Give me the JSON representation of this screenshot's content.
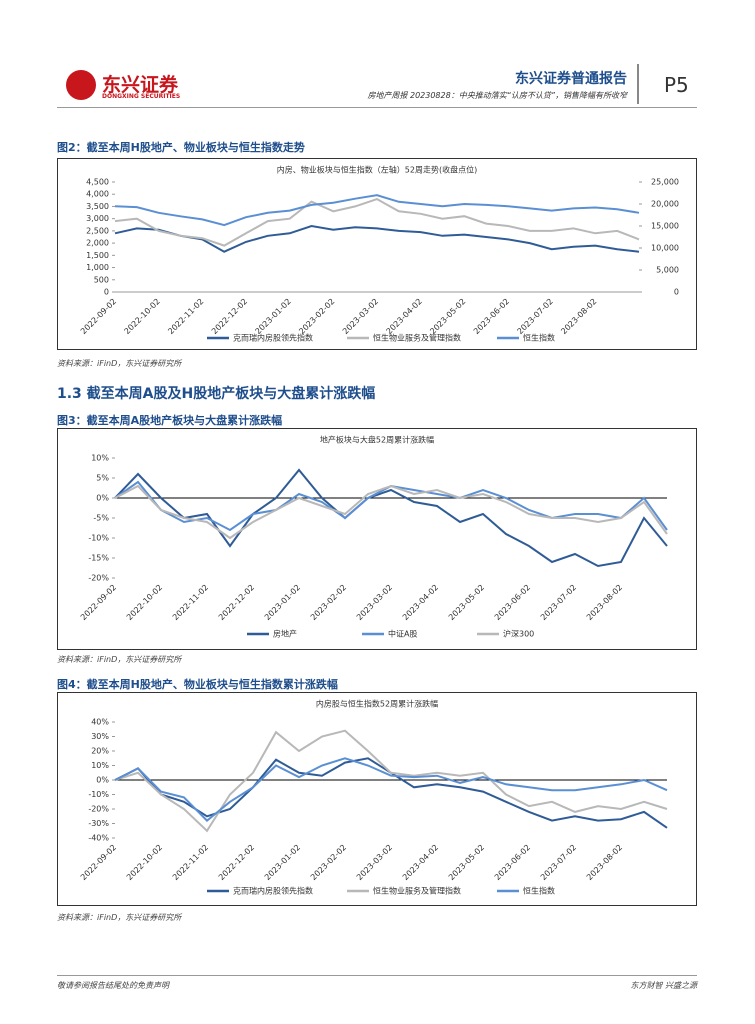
{
  "header": {
    "logo": "东兴证券",
    "logo_en": "DONGXING SECURITIES",
    "report_type": "东兴证券普通报告",
    "report_title": "房地产周报 20230828：中央推动落实“认房不认贷”，销售降幅有所收窄",
    "page": "P5"
  },
  "figures": [
    {
      "caption": "图2：截至本周H股地产、物业板块与恒生指数走势",
      "source": "资料来源：iFinD，东兴证券研究所"
    },
    {
      "caption": "图3：截至本周A股地产板块与大盘累计涨跌幅",
      "source": "资料来源：iFinD，东兴证券研究所"
    },
    {
      "caption": "图4：截至本周H股地产、物业板块与恒生指数累计涨跌幅",
      "source": "资料来源：iFinD，东兴证券研究所"
    }
  ],
  "section_heading": "1.3 截至本周A股及H股地产板块与大盘累计涨跌幅",
  "footer": {
    "left": "敬请参阅报告结尾处的免责声明",
    "right": "东方财智 兴盛之源"
  },
  "chart_data": [
    {
      "type": "line",
      "title": "内房、物业板块与恒生指数（左轴）52周走势(收盘点位)",
      "categories": [
        "2022-09-02",
        null,
        "2022-10-02",
        null,
        "2022-11-02",
        null,
        "2022-12-02",
        null,
        "2023-01-02",
        null,
        "2023-02-02",
        null,
        "2023-03-02",
        null,
        "2023-04-02",
        null,
        "2023-05-02",
        null,
        "2023-06-02",
        null,
        "2023-07-02",
        null,
        "2023-08-02",
        null,
        null
      ],
      "ylim": [
        0,
        4500
      ],
      "yticks": [
        0,
        500,
        {
          "value": 1000,
          "label": "1,000"
        },
        {
          "value": 1500,
          "label": "1,500"
        },
        {
          "value": 2000,
          "label": "2,000"
        },
        {
          "value": 2500,
          "label": "2,500"
        },
        {
          "value": 3000,
          "label": "3,000"
        },
        {
          "value": 3500,
          "label": "3,500"
        },
        {
          "value": 4000,
          "label": "4,000"
        },
        {
          "value": 4500,
          "label": "4,500"
        }
      ],
      "y2lim": [
        0,
        25000
      ],
      "y2ticks": [
        0,
        {
          "value": 5000,
          "label": "5,000"
        },
        {
          "value": 10000,
          "label": "10,000"
        },
        {
          "value": 15000,
          "label": "15,000"
        },
        {
          "value": 20000,
          "label": "20,000"
        },
        {
          "value": 25000,
          "label": "25,000"
        }
      ],
      "series": [
        {
          "name": "克而瑞内房股领先指数",
          "color": "#2f5c97",
          "values": [
            2400,
            2600,
            2550,
            2300,
            2150,
            1650,
            2050,
            2300,
            2400,
            2700,
            2550,
            2650,
            2600,
            2500,
            2450,
            2300,
            2350,
            2250,
            2150,
            2000,
            1750,
            1850,
            1900,
            1750,
            1650
          ]
        },
        {
          "name": "恒生物业服务及管理指数",
          "color": "#b8b8b8",
          "values": [
            2900,
            3000,
            2500,
            2300,
            2200,
            1900,
            2400,
            2900,
            3000,
            3700,
            3300,
            3500,
            3800,
            3300,
            3200,
            3000,
            3100,
            2800,
            2700,
            2500,
            2500,
            2600,
            2400,
            2500,
            2150
          ]
        },
        {
          "name": "恒生指数",
          "color": "#5b8fd3",
          "axis": "y2",
          "values": [
            19500,
            19300,
            18000,
            17200,
            16500,
            15200,
            17000,
            18000,
            18500,
            19800,
            20300,
            21200,
            22000,
            20500,
            20000,
            19500,
            20000,
            19800,
            19500,
            19000,
            18500,
            19000,
            19200,
            18800,
            18000
          ]
        }
      ]
    },
    {
      "type": "line",
      "title": "地产板块与大盘52周累计涨跌幅",
      "categories": [
        "2022-09-02",
        null,
        "2022-10-02",
        null,
        "2022-11-02",
        null,
        "2022-12-02",
        null,
        "2023-01-02",
        null,
        "2023-02-02",
        null,
        "2023-03-02",
        null,
        "2023-04-02",
        null,
        "2023-05-02",
        null,
        "2023-06-02",
        null,
        "2023-07-02",
        null,
        "2023-08-02",
        null,
        null
      ],
      "ylim": [
        -20,
        10
      ],
      "yticks": [
        {
          "value": -20,
          "label": "-20%"
        },
        {
          "value": -15,
          "label": "-15%"
        },
        {
          "value": -10,
          "label": "-10%"
        },
        {
          "value": -5,
          "label": "-5%"
        },
        {
          "value": 0,
          "label": "0%"
        },
        {
          "value": 5,
          "label": "5%"
        },
        {
          "value": 10,
          "label": "10%"
        }
      ],
      "zero_line": true,
      "series": [
        {
          "name": "房地产",
          "color": "#2f5c97",
          "values": [
            0,
            6,
            0,
            -5,
            -4,
            -12,
            -4,
            0,
            7,
            0,
            -5,
            0,
            2,
            -1,
            -2,
            -6,
            -4,
            -9,
            -12,
            -16,
            -14,
            -17,
            -16,
            -5,
            -12
          ]
        },
        {
          "name": "中证A股",
          "color": "#5b8fd3",
          "values": [
            0,
            4,
            -3,
            -6,
            -5,
            -8,
            -4,
            -3,
            1,
            -1,
            -5,
            0,
            3,
            2,
            1,
            0,
            2,
            0,
            -3,
            -5,
            -4,
            -4,
            -5,
            0,
            -8
          ]
        },
        {
          "name": "沪深300",
          "color": "#b8b8b8",
          "values": [
            0,
            3,
            -3,
            -5,
            -6,
            -10,
            -6,
            -3,
            0,
            -2,
            -4,
            1,
            3,
            1,
            2,
            0,
            1,
            -1,
            -4,
            -5,
            -5,
            -6,
            -5,
            -1,
            -9
          ]
        }
      ]
    },
    {
      "type": "line",
      "title": "内房股与恒生指数52周累计涨跌幅",
      "categories": [
        "2022-09-02",
        null,
        "2022-10-02",
        null,
        "2022-11-02",
        null,
        "2022-12-02",
        null,
        "2023-01-02",
        null,
        "2023-02-02",
        null,
        "2023-03-02",
        null,
        "2023-04-02",
        null,
        "2023-05-02",
        null,
        "2023-06-02",
        null,
        "2023-07-02",
        null,
        "2023-08-02",
        null,
        null
      ],
      "ylim": [
        -40,
        40
      ],
      "yticks": [
        {
          "value": -40,
          "label": "-40%"
        },
        {
          "value": -30,
          "label": "-30%"
        },
        {
          "value": -20,
          "label": "-20%"
        },
        {
          "value": -10,
          "label": "-10%"
        },
        {
          "value": 0,
          "label": "0%"
        },
        {
          "value": 10,
          "label": "10%"
        },
        {
          "value": 20,
          "label": "20%"
        },
        {
          "value": 30,
          "label": "30%"
        },
        {
          "value": 40,
          "label": "40%"
        }
      ],
      "zero_line": true,
      "series": [
        {
          "name": "克而瑞内房股领先指数",
          "color": "#2f5c97",
          "values": [
            0,
            8,
            -10,
            -15,
            -25,
            -20,
            -5,
            14,
            5,
            3,
            12,
            15,
            5,
            -5,
            -3,
            -5,
            -8,
            -15,
            -22,
            -28,
            -25,
            -28,
            -27,
            -22,
            -33
          ]
        },
        {
          "name": "恒生物业服务及管理指数",
          "color": "#b8b8b8",
          "values": [
            0,
            5,
            -10,
            -20,
            -35,
            -10,
            5,
            33,
            20,
            30,
            34,
            20,
            5,
            3,
            5,
            3,
            5,
            -10,
            -18,
            -15,
            -22,
            -18,
            -20,
            -15,
            -20
          ]
        },
        {
          "name": "恒生指数",
          "color": "#5b8fd3",
          "values": [
            0,
            8,
            -8,
            -12,
            -28,
            -15,
            -5,
            10,
            2,
            10,
            15,
            10,
            3,
            2,
            3,
            -2,
            2,
            -3,
            -5,
            -7,
            -7,
            -5,
            -3,
            0,
            -7
          ]
        }
      ]
    }
  ]
}
